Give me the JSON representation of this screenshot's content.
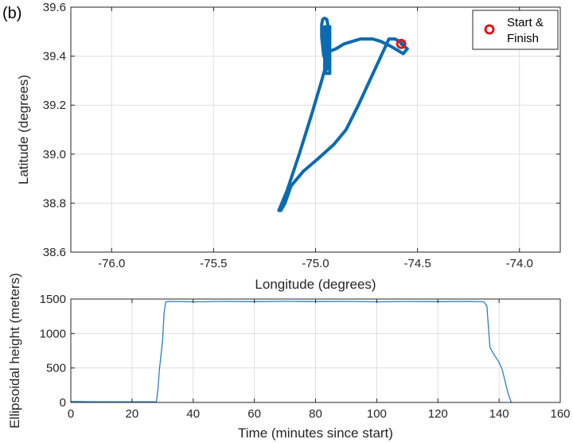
{
  "panel_label": "(b)",
  "colors": {
    "track": "#0b6bb0",
    "altitude": "#2a7fc0",
    "marker": "#e0171b",
    "grid": "#dfdfdf",
    "axis": "#262626"
  },
  "chart_data": [
    {
      "type": "line",
      "title": "",
      "xlabel": "Longitude (degrees)",
      "ylabel": "Latitude (degrees)",
      "xlim": [
        -76.2,
        -73.8
      ],
      "ylim": [
        38.6,
        39.6
      ],
      "xticks": [
        -76.0,
        -75.5,
        -75.0,
        -74.5,
        -74.0
      ],
      "xtick_labels": [
        "-76.0",
        "-75.5",
        "-75.0",
        "-74.5",
        "-74.0"
      ],
      "yticks": [
        38.6,
        38.8,
        39.0,
        39.2,
        39.4,
        39.6
      ],
      "ytick_labels": [
        "38.6",
        "38.8",
        "39.0",
        "39.2",
        "39.4",
        "39.6"
      ],
      "grid": true,
      "legend": {
        "position": "top-right",
        "entries": [
          {
            "label_line1": "Start &",
            "label_line2": "Finish",
            "marker": "circle"
          }
        ]
      },
      "marker_point": {
        "x": -74.58,
        "y": 39.45
      },
      "series": [
        {
          "x": [
            -74.58,
            -74.55,
            -74.57,
            -74.63,
            -74.68,
            -74.72,
            -74.78,
            -74.82,
            -74.86,
            -74.9,
            -74.93,
            -74.95,
            -74.96,
            -74.97,
            -74.97,
            -74.965,
            -74.955,
            -74.945,
            -74.94,
            -74.94,
            -74.94,
            -74.955,
            -74.955,
            -74.93,
            -74.93,
            -74.95,
            -74.95,
            -74.93,
            -74.93,
            -74.95,
            -74.95,
            -74.93,
            -74.93,
            -74.95,
            -74.95,
            -74.95,
            -74.97,
            -75.02,
            -75.08,
            -75.14,
            -75.17,
            -75.18,
            -75.17,
            -75.15,
            -75.12,
            -75.06,
            -74.99,
            -74.91,
            -74.85,
            -74.79,
            -74.74,
            -74.69,
            -74.64,
            -74.61,
            -74.57,
            -74.58
          ],
          "y": [
            39.45,
            39.43,
            39.41,
            39.44,
            39.46,
            39.47,
            39.47,
            39.46,
            39.45,
            39.43,
            39.42,
            39.41,
            39.4,
            39.48,
            39.53,
            39.55,
            39.555,
            39.55,
            39.53,
            39.45,
            39.35,
            39.34,
            39.52,
            39.52,
            39.33,
            39.33,
            39.51,
            39.51,
            39.36,
            39.36,
            39.5,
            39.5,
            39.38,
            39.38,
            39.46,
            39.36,
            39.3,
            39.16,
            39.0,
            38.85,
            38.79,
            38.77,
            38.77,
            38.8,
            38.87,
            38.93,
            38.98,
            39.04,
            39.1,
            39.2,
            39.29,
            39.38,
            39.47,
            39.47,
            39.45,
            39.45
          ]
        }
      ]
    },
    {
      "type": "line",
      "title": "",
      "xlabel": "Time (minutes since start)",
      "ylabel": "Ellipsoidal height (meters)",
      "xlim": [
        0,
        160
      ],
      "ylim": [
        0,
        1500
      ],
      "xticks": [
        0,
        20,
        40,
        60,
        80,
        100,
        120,
        140,
        160
      ],
      "xtick_labels": [
        "0",
        "20",
        "40",
        "60",
        "80",
        "100",
        "120",
        "140",
        "160"
      ],
      "yticks": [
        0,
        500,
        1000,
        1500
      ],
      "ytick_labels": [
        "0",
        "500",
        "1000",
        "1500"
      ],
      "grid": true,
      "series": [
        {
          "x": [
            0,
            5,
            10,
            20,
            28,
            28.5,
            29,
            30,
            30.5,
            31,
            32,
            40,
            50,
            60,
            70,
            80,
            90,
            100,
            110,
            120,
            130,
            135,
            136,
            136.5,
            137,
            138,
            139,
            140,
            141,
            142,
            143,
            144
          ],
          "y": [
            15,
            12,
            10,
            10,
            12,
            200,
            500,
            900,
            1300,
            1460,
            1465,
            1460,
            1465,
            1462,
            1466,
            1463,
            1465,
            1460,
            1464,
            1462,
            1465,
            1460,
            1400,
            1100,
            800,
            720,
            650,
            580,
            480,
            300,
            120,
            0
          ]
        }
      ]
    }
  ]
}
